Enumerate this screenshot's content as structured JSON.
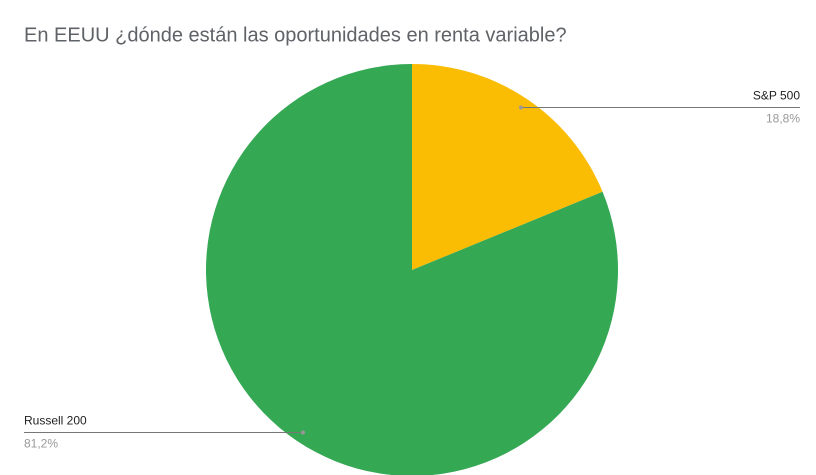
{
  "chart_data": {
    "type": "pie",
    "title": "En EEUU ¿dónde están las oportunidades en renta variable?",
    "categories": [
      "S&P 500",
      "Russell 200"
    ],
    "values": [
      18.8,
      81.2
    ],
    "value_labels": [
      "18,8%",
      "81,2%"
    ],
    "colors": [
      "#fbbc04",
      "#34a853"
    ]
  }
}
